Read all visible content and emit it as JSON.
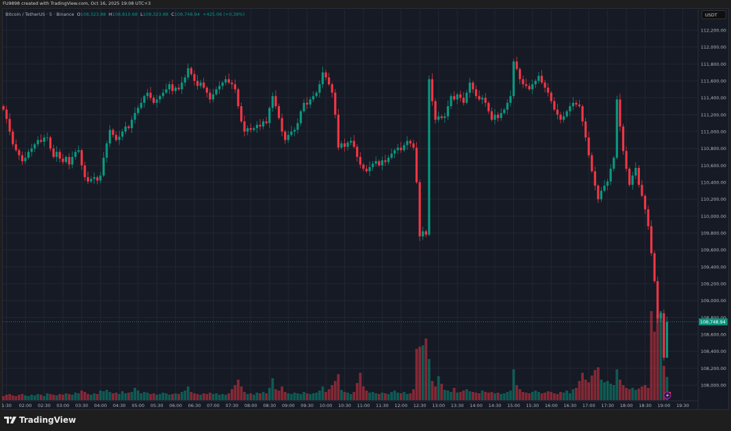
{
  "header": {
    "attribution": "FU9898 created with TradingView.com, Oct 16, 2025 19:08 UTC+3"
  },
  "legend": {
    "symbol": "Bitcoin / TetherUS · 5 · Binance",
    "o_label": "O",
    "o": "108,323.88",
    "h_label": "H",
    "h": "108,810.68",
    "l_label": "L",
    "l": "108,323.88",
    "c_label": "C",
    "c": "108,748.94",
    "change": "+425.06 (+0.39%)"
  },
  "currency_button": "USDT",
  "footer": {
    "brand": "TradingView"
  },
  "colors": {
    "up": "#089981",
    "down": "#f23645",
    "background": "#161a25",
    "grid": "#232733"
  },
  "chart_data": {
    "type": "candlestick",
    "title": "Bitcoin / TetherUS · 5 · Binance",
    "interval_minutes": 5,
    "first_candle_time": "01:25",
    "ylim": [
      107900,
      112300
    ],
    "grid": true,
    "y_ticks": [
      "112,200.00",
      "112,000.00",
      "111,800.00",
      "111,600.00",
      "111,400.00",
      "111,200.00",
      "111,000.00",
      "110,800.00",
      "110,600.00",
      "110,400.00",
      "110,200.00",
      "110,000.00",
      "109,800.00",
      "109,600.00",
      "109,400.00",
      "109,200.00",
      "109,000.00",
      "108,800.00",
      "108,600.00",
      "108,400.00",
      "108,200.00",
      "108,000.00"
    ],
    "y_tick_values": [
      112200,
      112000,
      111800,
      111600,
      111400,
      111200,
      111000,
      110800,
      110600,
      110400,
      110200,
      110000,
      109800,
      109600,
      109400,
      109200,
      109000,
      108800,
      108600,
      108400,
      108200,
      108000
    ],
    "x_ticks": [
      "1:30",
      "02:00",
      "02:30",
      "03:00",
      "03:30",
      "04:00",
      "04:30",
      "05:00",
      "05:30",
      "06:00",
      "06:30",
      "07:00",
      "07:30",
      "08:00",
      "08:30",
      "09:00",
      "09:30",
      "10:00",
      "10:30",
      "11:00",
      "11:30",
      "12:00",
      "12:30",
      "13:00",
      "13:30",
      "14:00",
      "14:30",
      "15:00",
      "15:30",
      "16:00",
      "16:30",
      "17:00",
      "17:30",
      "18:00",
      "18:30",
      "19:00",
      "19:30"
    ],
    "last_price": 108748.94,
    "last_price_label": "108,748.94",
    "last_candle": {
      "open": 108323.88,
      "high": 108810.68,
      "low": 108323.88,
      "close": 108748.94
    },
    "first_open": 111300,
    "close": [
      111260,
      111150,
      111000,
      110850,
      110780,
      110720,
      110650,
      110690,
      110760,
      110800,
      110850,
      110900,
      110880,
      110930,
      110930,
      110800,
      110700,
      110760,
      110680,
      110640,
      110700,
      110610,
      110700,
      110760,
      110780,
      110600,
      110460,
      110410,
      110440,
      110460,
      110420,
      110480,
      110690,
      110860,
      111020,
      110960,
      110900,
      110940,
      111000,
      111060,
      111040,
      111140,
      111220,
      111280,
      111340,
      111420,
      111460,
      111400,
      111340,
      111380,
      111420,
      111460,
      111500,
      111560,
      111480,
      111520,
      111500,
      111580,
      111640,
      111750,
      111680,
      111600,
      111540,
      111580,
      111520,
      111460,
      111380,
      111440,
      111500,
      111540,
      111580,
      111620,
      111580,
      111560,
      111500,
      111300,
      111120,
      111000,
      111040,
      111020,
      111040,
      111080,
      111060,
      111120,
      111100,
      111280,
      111420,
      111300,
      111160,
      111000,
      110900,
      110960,
      111000,
      111020,
      111100,
      111240,
      111340,
      111320,
      111380,
      111420,
      111460,
      111560,
      111700,
      111640,
      111560,
      111460,
      111200,
      110810,
      110860,
      110820,
      110870,
      110890,
      110820,
      110700,
      110610,
      110560,
      110530,
      110580,
      110620,
      110650,
      110600,
      110660,
      110640,
      110690,
      110740,
      110780,
      110810,
      110780,
      110840,
      110890,
      110860,
      110810,
      110400,
      109760,
      109820,
      109780,
      111620,
      111360,
      111140,
      111180,
      111160,
      111180,
      111300,
      111420,
      111380,
      111440,
      111400,
      111340,
      111460,
      111580,
      111500,
      111420,
      111380,
      111400,
      111340,
      111240,
      111140,
      111200,
      111160,
      111220,
      111260,
      111340,
      111420,
      111830,
      111740,
      111620,
      111560,
      111540,
      111500,
      111560,
      111600,
      111660,
      111580,
      111520,
      111460,
      111360,
      111260,
      111200,
      111140,
      111180,
      111240,
      111300,
      111340,
      111320,
      111300,
      111120,
      110930,
      110720,
      110530,
      110360,
      110200,
      110300,
      110360,
      110410,
      110560,
      110690,
      111380,
      111060,
      110770,
      110560,
      110370,
      110480,
      110570,
      110370,
      110240,
      110080,
      109880,
      109560,
      109230,
      108790,
      108850,
      108323.88,
      108748.94
    ],
    "volume": [
      6,
      8,
      9,
      7,
      6,
      8,
      9,
      7,
      6,
      8,
      7,
      9,
      8,
      6,
      10,
      9,
      8,
      7,
      9,
      8,
      10,
      9,
      8,
      11,
      10,
      14,
      12,
      9,
      8,
      10,
      9,
      14,
      13,
      15,
      12,
      10,
      11,
      9,
      13,
      10,
      11,
      12,
      18,
      14,
      10,
      12,
      11,
      9,
      10,
      8,
      9,
      11,
      10,
      8,
      9,
      10,
      9,
      12,
      14,
      20,
      12,
      10,
      9,
      8,
      10,
      9,
      11,
      9,
      10,
      8,
      9,
      8,
      10,
      16,
      22,
      30,
      20,
      12,
      9,
      10,
      8,
      11,
      10,
      12,
      10,
      18,
      32,
      16,
      14,
      20,
      12,
      10,
      9,
      11,
      10,
      9,
      12,
      10,
      9,
      10,
      11,
      14,
      20,
      12,
      16,
      22,
      28,
      38,
      15,
      12,
      11,
      9,
      12,
      25,
      40,
      20,
      14,
      11,
      12,
      10,
      9,
      11,
      10,
      9,
      12,
      14,
      11,
      10,
      12,
      9,
      10,
      16,
      75,
      78,
      80,
      90,
      60,
      28,
      20,
      35,
      24,
      15,
      14,
      12,
      18,
      11,
      12,
      14,
      16,
      13,
      12,
      11,
      10,
      14,
      12,
      11,
      12,
      10,
      11,
      9,
      10,
      12,
      14,
      45,
      22,
      16,
      12,
      11,
      10,
      12,
      14,
      12,
      10,
      11,
      13,
      12,
      10,
      9,
      12,
      11,
      14,
      10,
      16,
      18,
      28,
      40,
      30,
      26,
      36,
      44,
      48,
      30,
      26,
      28,
      24,
      22,
      45,
      30,
      22,
      18,
      16,
      18,
      15,
      17,
      20,
      22,
      18,
      130,
      100,
      125,
      130,
      50,
      34
    ]
  }
}
